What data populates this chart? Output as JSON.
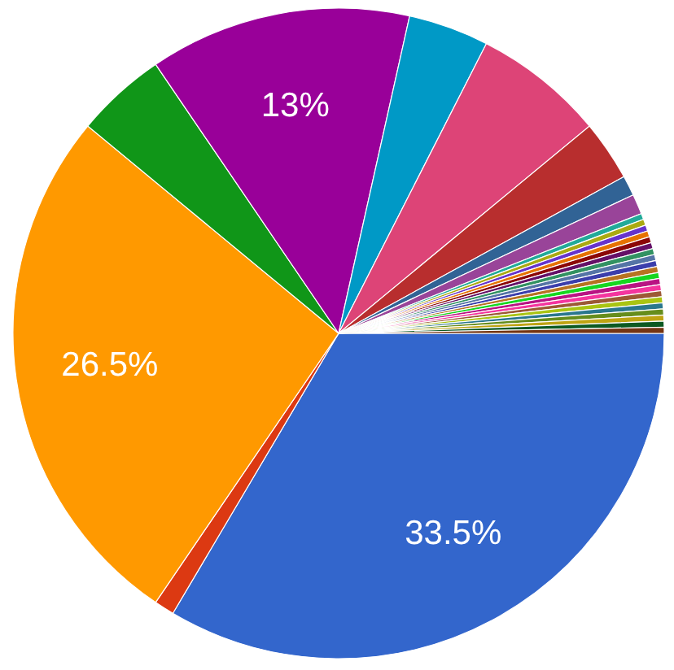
{
  "chart_data": {
    "type": "pie",
    "categories": [
      null,
      null,
      null,
      null,
      null,
      null,
      null,
      null,
      null,
      null,
      null,
      null,
      null,
      null,
      null,
      null,
      null,
      null,
      null,
      null,
      null,
      null,
      null,
      null,
      null,
      null,
      null,
      null,
      null,
      null
    ],
    "values": [
      33.5,
      1.0,
      26.5,
      4.5,
      13,
      4.0,
      6.5,
      3.0,
      1.0,
      1.0,
      0.3,
      0.3,
      0.3,
      0.3,
      0.3,
      0.3,
      0.3,
      0.3,
      0.3,
      0.3,
      0.3,
      0.3,
      0.3,
      0.3,
      0.3,
      0.3,
      0.3,
      0.3,
      0.3,
      0.3
    ],
    "value_labels": [
      "33.5%",
      null,
      "26.5%",
      null,
      "13%",
      null,
      null,
      null,
      null,
      null,
      null,
      null,
      null,
      null,
      null,
      null,
      null,
      null,
      null,
      null,
      null,
      null,
      null,
      null,
      null,
      null,
      null,
      null,
      null,
      null
    ],
    "colors": [
      "#3366cc",
      "#dc3912",
      "#ff9900",
      "#109618",
      "#990099",
      "#0099c6",
      "#dd4477",
      "#b82e2e",
      "#316395",
      "#994499",
      "#22aa99",
      "#aaaa11",
      "#6633cc",
      "#e67300",
      "#8b0707",
      "#651067",
      "#329262",
      "#5574a6",
      "#3b3eac",
      "#b77322",
      "#16d620",
      "#b91383",
      "#f4359e",
      "#9c5935",
      "#a9c413",
      "#2a778d",
      "#668d1c",
      "#bea413",
      "#0c5922",
      "#743411"
    ]
  }
}
